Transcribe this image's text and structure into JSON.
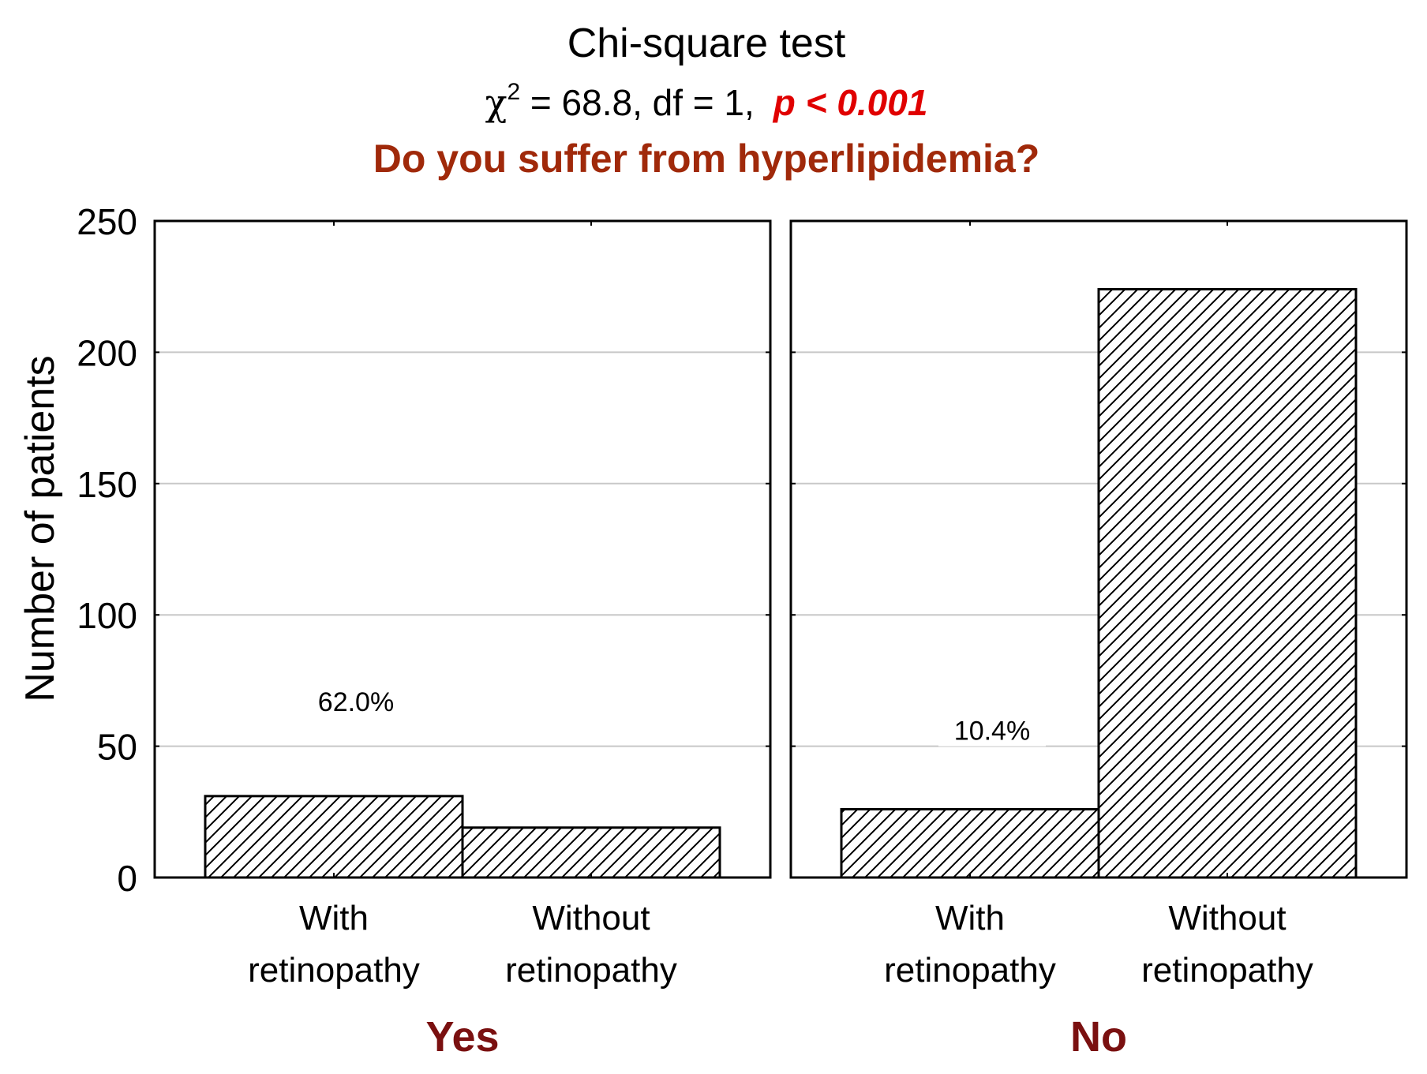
{
  "chart_data": {
    "type": "bar",
    "title": "Chi-square test",
    "stat_line": {
      "chi_symbol": "χ",
      "superscript": "2",
      "stat_rest": " = 68.8,  df = 1,",
      "p_label": "p < 0.001",
      "p_color": "#e00000"
    },
    "question": "Do you suffer from hyperlipidemia?",
    "question_color": "#a0290a",
    "ylabel": "Number of patients",
    "ylim": [
      0,
      250
    ],
    "yticks": [
      "0",
      "50",
      "100",
      "150",
      "200",
      "250"
    ],
    "grid": true,
    "bar_fill": "diagonal-hatch",
    "panels": [
      {
        "group_label": "Yes",
        "categories": [
          "With retinopathy",
          "Without retinopathy"
        ],
        "category_lines": [
          [
            "With",
            "retinopathy"
          ],
          [
            "Without",
            "retinopathy"
          ]
        ],
        "values": [
          31,
          19
        ],
        "annotation": "62.0%",
        "annotation_y": 67
      },
      {
        "group_label": "No",
        "categories": [
          "With retinopathy",
          "Without retinopathy"
        ],
        "category_lines": [
          [
            "With",
            "retinopathy"
          ],
          [
            "Without",
            "retinopathy"
          ]
        ],
        "values": [
          26,
          224
        ],
        "annotation": "10.4%",
        "annotation_y": 56
      }
    ],
    "group_label_color": "#7a1010"
  }
}
